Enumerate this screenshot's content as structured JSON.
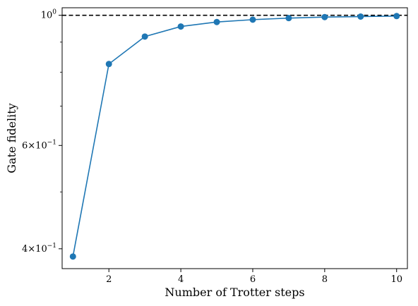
{
  "chart_data": {
    "type": "line",
    "xlabel": "Number of Trotter steps",
    "ylabel": "Gate fidelity",
    "xlim": [
      0.7,
      10.3
    ],
    "ylim": [
      0.37,
      1.03
    ],
    "y_scale": "log",
    "grid": false,
    "x": [
      1,
      2,
      3,
      4,
      5,
      6,
      7,
      8,
      9,
      10
    ],
    "series": [
      {
        "color": "#1f77b4",
        "marker": "circle",
        "values": [
          0.388,
          0.826,
          0.92,
          0.957,
          0.974,
          0.983,
          0.989,
          0.993,
          0.995,
          0.997
        ]
      }
    ],
    "reference_line": {
      "y": 1.0,
      "style": "dashed",
      "color": "#000000"
    },
    "x_ticks": [
      {
        "value": 2,
        "label": "2"
      },
      {
        "value": 4,
        "label": "4"
      },
      {
        "value": 6,
        "label": "6"
      },
      {
        "value": 8,
        "label": "8"
      },
      {
        "value": 10,
        "label": "10"
      }
    ],
    "y_ticks": [
      {
        "value": 1.0,
        "base": "10",
        "exp": "0"
      },
      {
        "value": 0.6,
        "mant": "6",
        "base": "10",
        "exp": "−1"
      },
      {
        "value": 0.4,
        "mant": "4",
        "base": "10",
        "exp": "−1"
      }
    ],
    "y_minor_ticks": [
      0.5,
      0.7,
      0.8,
      0.9
    ]
  }
}
